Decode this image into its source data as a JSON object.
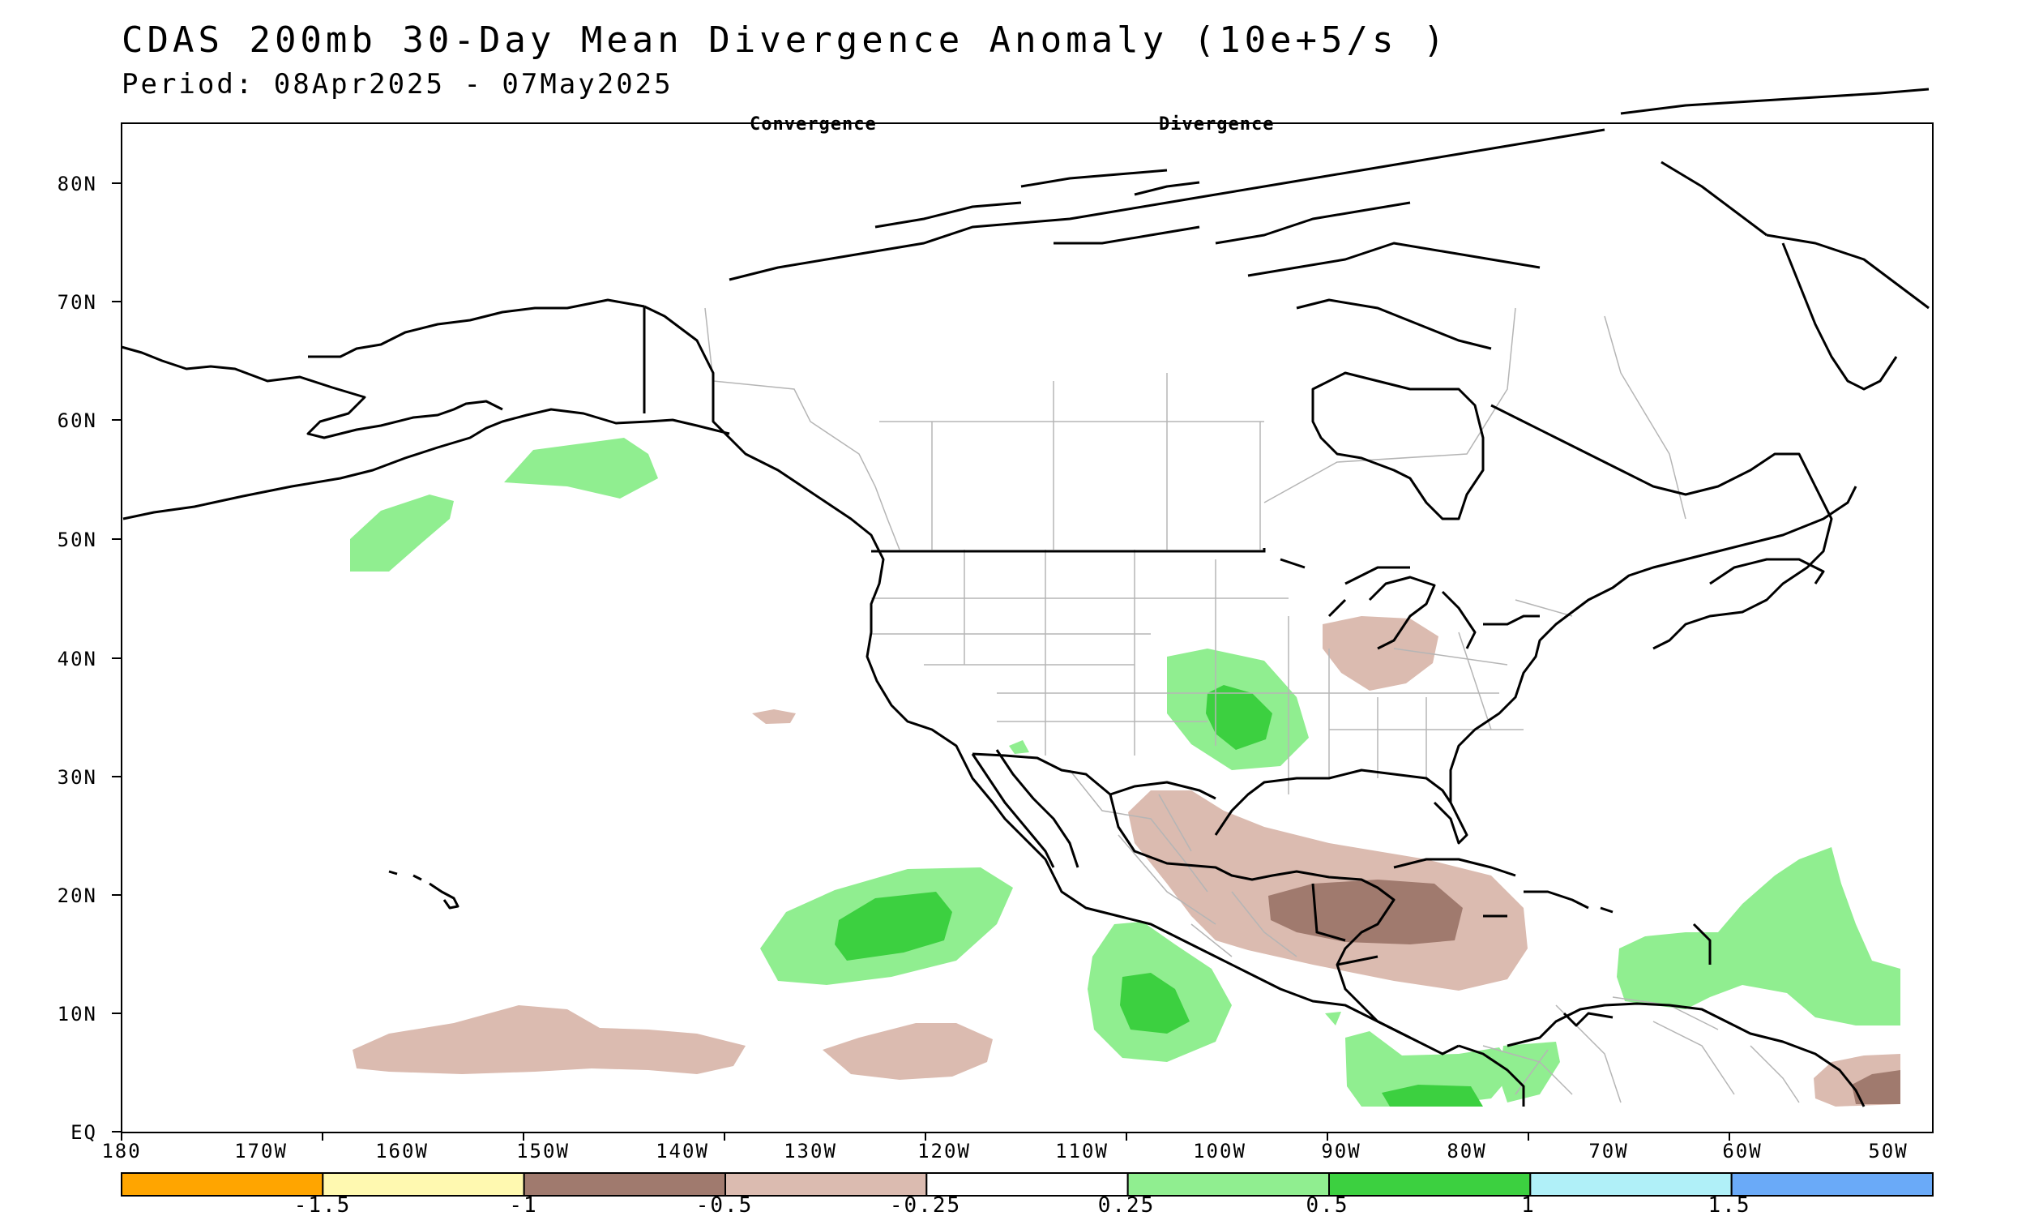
{
  "title": "CDAS 200mb 30-Day Mean Divergence Anomaly (10e+5/s )",
  "period": "Period: 08Apr2025 - 07May2025",
  "annotations": {
    "left": "Convergence",
    "right": "Divergence"
  },
  "lat_labels": [
    "EQ",
    "10N",
    "20N",
    "30N",
    "40N",
    "50N",
    "60N",
    "70N",
    "80N"
  ],
  "lon_labels": [
    "180",
    "170W",
    "160W",
    "150W",
    "140W",
    "130W",
    "120W",
    "110W",
    "100W",
    "90W",
    "80W",
    "70W",
    "60W",
    "50W"
  ],
  "colorbar": {
    "colors": [
      "#ffa500",
      "#fff9b0",
      "#a07a6e",
      "#dbbbb0",
      "#ffffff",
      "#90ee90",
      "#3cd040",
      "#b0f0f8",
      "#6aaaf8"
    ],
    "tick_labels": [
      "-1.5",
      "-1",
      "-0.5",
      "-0.25",
      "0.25",
      "0.5",
      "1",
      "1.5"
    ]
  },
  "shading_colors": {
    "divergence_weak": "#90ee90",
    "divergence_strong": "#3cd040",
    "convergence_weak": "#dbbbb0",
    "convergence_strong": "#a07a6e"
  }
}
